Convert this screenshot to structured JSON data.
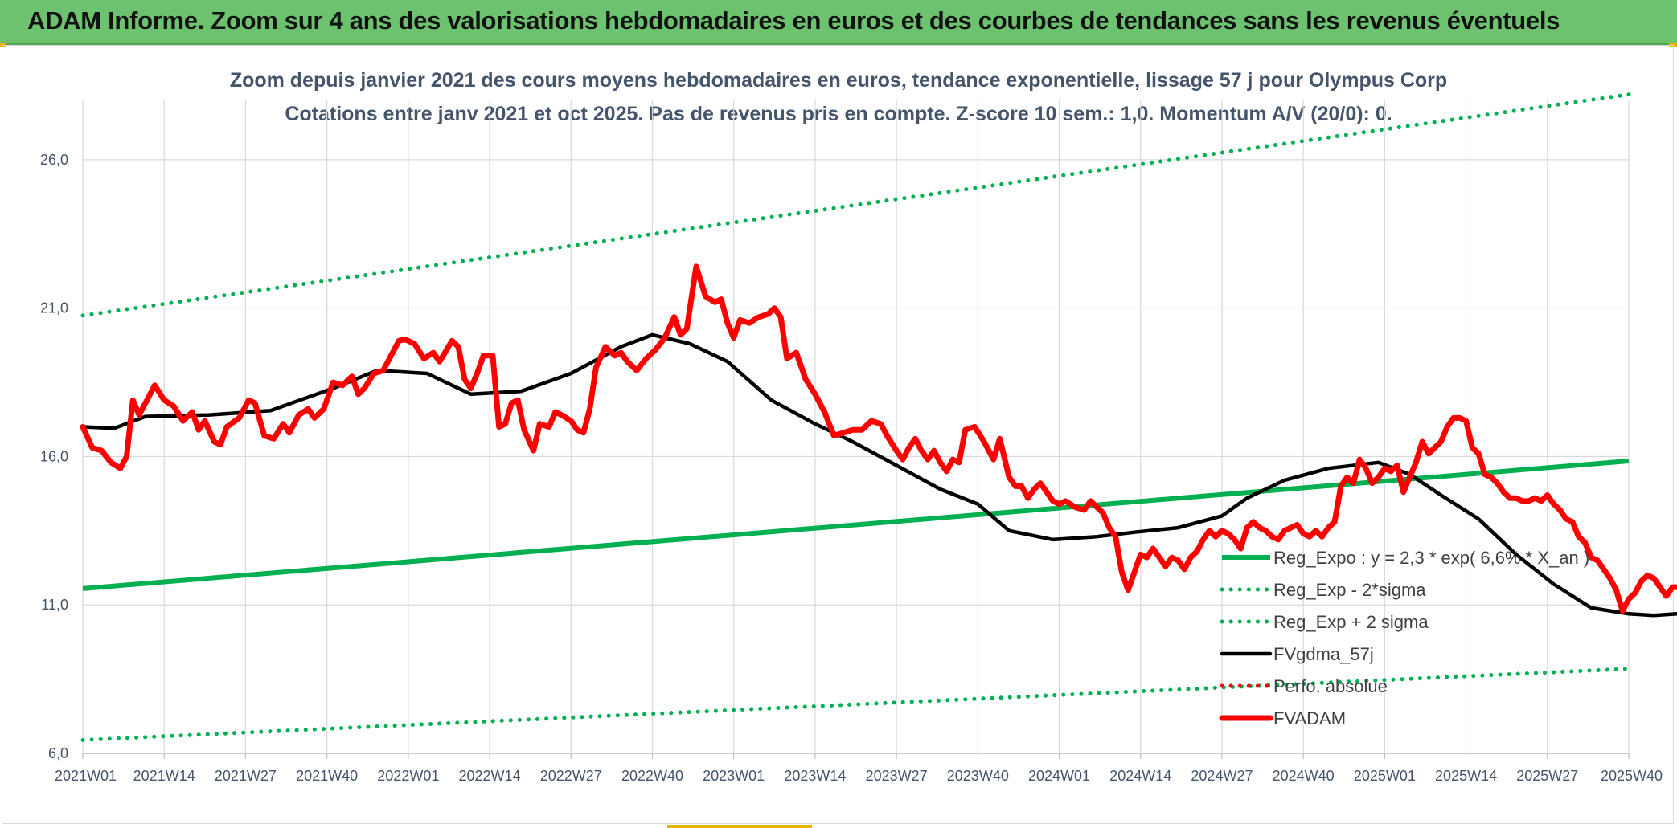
{
  "banner": {
    "title": "ADAM Informe. Zoom sur 4 ans des valorisations hebdomadaires en euros et des courbes de tendances sans les revenus éventuels"
  },
  "colors": {
    "banner": "#6cc26f",
    "trend": "#00b050",
    "price": "#ff0000",
    "smooth": "#000000",
    "grid": "#d9d9d9",
    "text": "#44546a"
  },
  "chart_data": {
    "type": "line",
    "title": [
      "Zoom depuis janvier 2021 des cours moyens hebdomadaires en euros, tendance exponentielle, lissage 57 j pour Olympus Corp",
      "Cotations entre janv 2021 et oct 2025. Pas de revenus pris en compte. Z-score 10 sem.: 1,0. Momentum A/V (20/0): 0."
    ],
    "xlabel": "",
    "ylabel": "",
    "ylim": [
      6,
      28
    ],
    "yticks": [
      6,
      11,
      16,
      21,
      26
    ],
    "ytick_labels": [
      "6,0",
      "11,0",
      "16,0",
      "21,0",
      "26,0"
    ],
    "xlim": [
      0,
      247
    ],
    "xticks": [
      0,
      13,
      26,
      39,
      52,
      65,
      78,
      91,
      104,
      117,
      130,
      143,
      156,
      169,
      182,
      195,
      208,
      221,
      234,
      247
    ],
    "xtick_labels": [
      "2021W01",
      "2021W14",
      "2021W27",
      "2021W40",
      "2022W01",
      "2022W14",
      "2022W27",
      "2022W40",
      "2023W01",
      "2023W14",
      "2023W27",
      "2023W40",
      "2024W01",
      "2024W14",
      "2024W27",
      "2024W40",
      "2025W01",
      "2025W14",
      "2025W27",
      "2025W40"
    ],
    "legend_position": "right",
    "series": [
      {
        "name": "Reg_Expo : y = 2,3 * exp( 6,6% *  X_an )",
        "style": "solid-thick",
        "color": "#00b050",
        "points": [
          [
            0,
            11.55
          ],
          [
            247,
            15.85
          ]
        ]
      },
      {
        "name": "Reg_Exp - 2*sigma",
        "style": "dotted",
        "color": "#00b050",
        "points": [
          [
            0,
            6.45
          ],
          [
            247,
            8.85
          ]
        ]
      },
      {
        "name": "Reg_Exp + 2 sigma",
        "style": "dotted",
        "color": "#00b050",
        "points": [
          [
            0,
            20.75
          ],
          [
            247,
            28.2
          ]
        ]
      },
      {
        "name": "FVgdma_57j",
        "style": "solid",
        "color": "#000000",
        "points": [
          [
            0,
            17.0
          ],
          [
            5,
            16.95
          ],
          [
            10,
            17.35
          ],
          [
            20,
            17.4
          ],
          [
            30,
            17.55
          ],
          [
            40,
            18.3
          ],
          [
            47,
            18.9
          ],
          [
            55,
            18.8
          ],
          [
            62,
            18.1
          ],
          [
            70,
            18.2
          ],
          [
            78,
            18.8
          ],
          [
            86,
            19.7
          ],
          [
            91,
            20.1
          ],
          [
            97,
            19.8
          ],
          [
            103,
            19.2
          ],
          [
            110,
            17.9
          ],
          [
            117,
            17.1
          ],
          [
            123,
            16.5
          ],
          [
            130,
            15.7
          ],
          [
            137,
            14.9
          ],
          [
            143,
            14.4
          ],
          [
            148,
            13.5
          ],
          [
            155,
            13.2
          ],
          [
            162,
            13.3
          ],
          [
            168,
            13.45
          ],
          [
            175,
            13.6
          ],
          [
            182,
            14.0
          ],
          [
            186,
            14.6
          ],
          [
            192,
            15.2
          ],
          [
            199,
            15.6
          ],
          [
            207,
            15.8
          ],
          [
            212,
            15.4
          ],
          [
            217,
            14.7
          ],
          [
            223,
            13.9
          ],
          [
            229,
            12.7
          ],
          [
            235,
            11.7
          ],
          [
            241,
            10.9
          ],
          [
            247,
            10.7
          ],
          [
            251,
            10.65
          ],
          [
            256,
            10.72
          ]
        ]
      },
      {
        "name": "Perfo. absolue",
        "style": "dotted",
        "color": "#ff0000",
        "points": []
      },
      {
        "name": "FVADAM",
        "style": "solid-thick",
        "color": "#ff0000",
        "points": [
          [
            0,
            17.0
          ],
          [
            1.5,
            16.3
          ],
          [
            3,
            16.2
          ],
          [
            4.5,
            15.8
          ],
          [
            6,
            15.6
          ],
          [
            7,
            16.0
          ],
          [
            8,
            17.9
          ],
          [
            9,
            17.4
          ],
          [
            10,
            17.8
          ],
          [
            11.5,
            18.4
          ],
          [
            13,
            17.9
          ],
          [
            14.5,
            17.7
          ],
          [
            16,
            17.2
          ],
          [
            17.5,
            17.5
          ],
          [
            18.5,
            16.9
          ],
          [
            19.5,
            17.2
          ],
          [
            21,
            16.5
          ],
          [
            22,
            16.4
          ],
          [
            23,
            17.0
          ],
          [
            25,
            17.3
          ],
          [
            26.5,
            17.9
          ],
          [
            27.5,
            17.8
          ],
          [
            29,
            16.7
          ],
          [
            30.5,
            16.6
          ],
          [
            32,
            17.1
          ],
          [
            33,
            16.8
          ],
          [
            34.5,
            17.4
          ],
          [
            36,
            17.6
          ],
          [
            37,
            17.3
          ],
          [
            38.5,
            17.6
          ],
          [
            40,
            18.5
          ],
          [
            41.5,
            18.4
          ],
          [
            43,
            18.7
          ],
          [
            44,
            18.1
          ],
          [
            45,
            18.3
          ],
          [
            46.5,
            18.8
          ],
          [
            48,
            18.9
          ],
          [
            49,
            19.3
          ],
          [
            50.5,
            19.9
          ],
          [
            51.5,
            19.95
          ],
          [
            53,
            19.8
          ],
          [
            54.5,
            19.3
          ],
          [
            56,
            19.5
          ],
          [
            57,
            19.2
          ],
          [
            59,
            19.9
          ],
          [
            60,
            19.7
          ],
          [
            61,
            18.6
          ],
          [
            62,
            18.3
          ],
          [
            63,
            18.8
          ],
          [
            64,
            19.4
          ],
          [
            65.5,
            19.4
          ],
          [
            66.5,
            17.0
          ],
          [
            67.5,
            17.1
          ],
          [
            68.5,
            17.8
          ],
          [
            69.5,
            17.9
          ],
          [
            70.5,
            16.9
          ],
          [
            72,
            16.2
          ],
          [
            73,
            17.1
          ],
          [
            74.5,
            17.0
          ],
          [
            75.5,
            17.5
          ],
          [
            76.5,
            17.4
          ],
          [
            78,
            17.2
          ],
          [
            79,
            16.9
          ],
          [
            80,
            16.8
          ],
          [
            81,
            17.6
          ],
          [
            82,
            19.0
          ],
          [
            83.5,
            19.7
          ],
          [
            85,
            19.4
          ],
          [
            86,
            19.5
          ],
          [
            87,
            19.2
          ],
          [
            88.5,
            18.9
          ],
          [
            90,
            19.3
          ],
          [
            91.5,
            19.6
          ],
          [
            93,
            20.0
          ],
          [
            94.5,
            20.7
          ],
          [
            95.5,
            20.1
          ],
          [
            96.5,
            20.3
          ],
          [
            98,
            22.4
          ],
          [
            99.5,
            21.4
          ],
          [
            101,
            21.2
          ],
          [
            102,
            21.3
          ],
          [
            103,
            20.5
          ],
          [
            104,
            20.0
          ],
          [
            105,
            20.6
          ],
          [
            106.5,
            20.5
          ],
          [
            108,
            20.7
          ],
          [
            109.5,
            20.8
          ],
          [
            110.5,
            21.0
          ],
          [
            111.5,
            20.7
          ],
          [
            112.5,
            19.3
          ],
          [
            114,
            19.5
          ],
          [
            115.5,
            18.6
          ],
          [
            117,
            18.1
          ],
          [
            118.5,
            17.5
          ],
          [
            120,
            16.7
          ],
          [
            121.5,
            16.8
          ],
          [
            123,
            16.9
          ],
          [
            124.5,
            16.9
          ],
          [
            126,
            17.2
          ],
          [
            127.5,
            17.1
          ],
          [
            128.5,
            16.7
          ],
          [
            130,
            16.2
          ],
          [
            131,
            15.9
          ],
          [
            132,
            16.3
          ],
          [
            133,
            16.6
          ],
          [
            134,
            16.2
          ],
          [
            135,
            15.9
          ],
          [
            136,
            16.2
          ],
          [
            137,
            15.8
          ],
          [
            138,
            15.5
          ],
          [
            139,
            15.9
          ],
          [
            140,
            15.8
          ],
          [
            141,
            16.9
          ],
          [
            142.5,
            17.0
          ],
          [
            144,
            16.5
          ],
          [
            145.5,
            15.9
          ],
          [
            146.5,
            16.6
          ],
          [
            148,
            15.3
          ],
          [
            149,
            15.0
          ],
          [
            150,
            15.0
          ],
          [
            151,
            14.6
          ],
          [
            152,
            14.9
          ],
          [
            153,
            15.1
          ],
          [
            154,
            14.8
          ],
          [
            155,
            14.5
          ],
          [
            156,
            14.4
          ],
          [
            157,
            14.5
          ],
          [
            158.5,
            14.3
          ],
          [
            160,
            14.2
          ],
          [
            161,
            14.5
          ],
          [
            162,
            14.3
          ],
          [
            163,
            14.1
          ],
          [
            164,
            13.6
          ],
          [
            165,
            13.3
          ],
          [
            166,
            12.1
          ],
          [
            167,
            11.5
          ],
          [
            168,
            12.1
          ],
          [
            169,
            12.7
          ],
          [
            170,
            12.6
          ],
          [
            171,
            12.9
          ],
          [
            172,
            12.6
          ],
          [
            173,
            12.3
          ],
          [
            174,
            12.6
          ],
          [
            175,
            12.5
          ],
          [
            176,
            12.2
          ],
          [
            177,
            12.6
          ],
          [
            178,
            12.8
          ],
          [
            179,
            13.2
          ],
          [
            180,
            13.5
          ],
          [
            181,
            13.3
          ],
          [
            182,
            13.5
          ],
          [
            183,
            13.4
          ],
          [
            184,
            13.2
          ],
          [
            185,
            12.9
          ],
          [
            186,
            13.6
          ],
          [
            187,
            13.8
          ],
          [
            188,
            13.6
          ],
          [
            189,
            13.5
          ],
          [
            190,
            13.3
          ],
          [
            191,
            13.2
          ],
          [
            192,
            13.5
          ],
          [
            193,
            13.6
          ],
          [
            194,
            13.7
          ],
          [
            195,
            13.4
          ],
          [
            196,
            13.3
          ],
          [
            197,
            13.5
          ],
          [
            198,
            13.3
          ],
          [
            199,
            13.6
          ],
          [
            200,
            13.8
          ],
          [
            201,
            15.0
          ],
          [
            202,
            15.3
          ],
          [
            203,
            15.1
          ],
          [
            204,
            15.9
          ],
          [
            205,
            15.6
          ],
          [
            206,
            15.1
          ],
          [
            207,
            15.3
          ],
          [
            208,
            15.6
          ],
          [
            209,
            15.5
          ],
          [
            210,
            15.7
          ],
          [
            211,
            14.8
          ],
          [
            212,
            15.3
          ],
          [
            213,
            15.8
          ],
          [
            214,
            16.5
          ],
          [
            215,
            16.1
          ],
          [
            216,
            16.3
          ],
          [
            217,
            16.5
          ],
          [
            218,
            17.0
          ],
          [
            219,
            17.3
          ],
          [
            220,
            17.3
          ],
          [
            221,
            17.2
          ],
          [
            222,
            16.3
          ],
          [
            223,
            16.1
          ],
          [
            224,
            15.4
          ],
          [
            225,
            15.3
          ],
          [
            226,
            15.1
          ],
          [
            227,
            14.8
          ],
          [
            228,
            14.6
          ],
          [
            229,
            14.6
          ],
          [
            230,
            14.5
          ],
          [
            231,
            14.5
          ],
          [
            232,
            14.6
          ],
          [
            233,
            14.5
          ],
          [
            234,
            14.7
          ],
          [
            235,
            14.4
          ],
          [
            236,
            14.2
          ],
          [
            237,
            13.9
          ],
          [
            238,
            13.8
          ],
          [
            239,
            13.3
          ],
          [
            240,
            13.1
          ],
          [
            241,
            12.6
          ],
          [
            242,
            12.5
          ],
          [
            243,
            12.2
          ],
          [
            244,
            11.9
          ],
          [
            245,
            11.5
          ],
          [
            246,
            10.8
          ],
          [
            247,
            11.2
          ],
          [
            248,
            11.4
          ],
          [
            249,
            11.8
          ],
          [
            250,
            12.0
          ],
          [
            251,
            11.9
          ],
          [
            252,
            11.6
          ],
          [
            253,
            11.3
          ],
          [
            254,
            11.6
          ],
          [
            255,
            11.6
          ],
          [
            256,
            11.3
          ]
        ]
      }
    ]
  }
}
